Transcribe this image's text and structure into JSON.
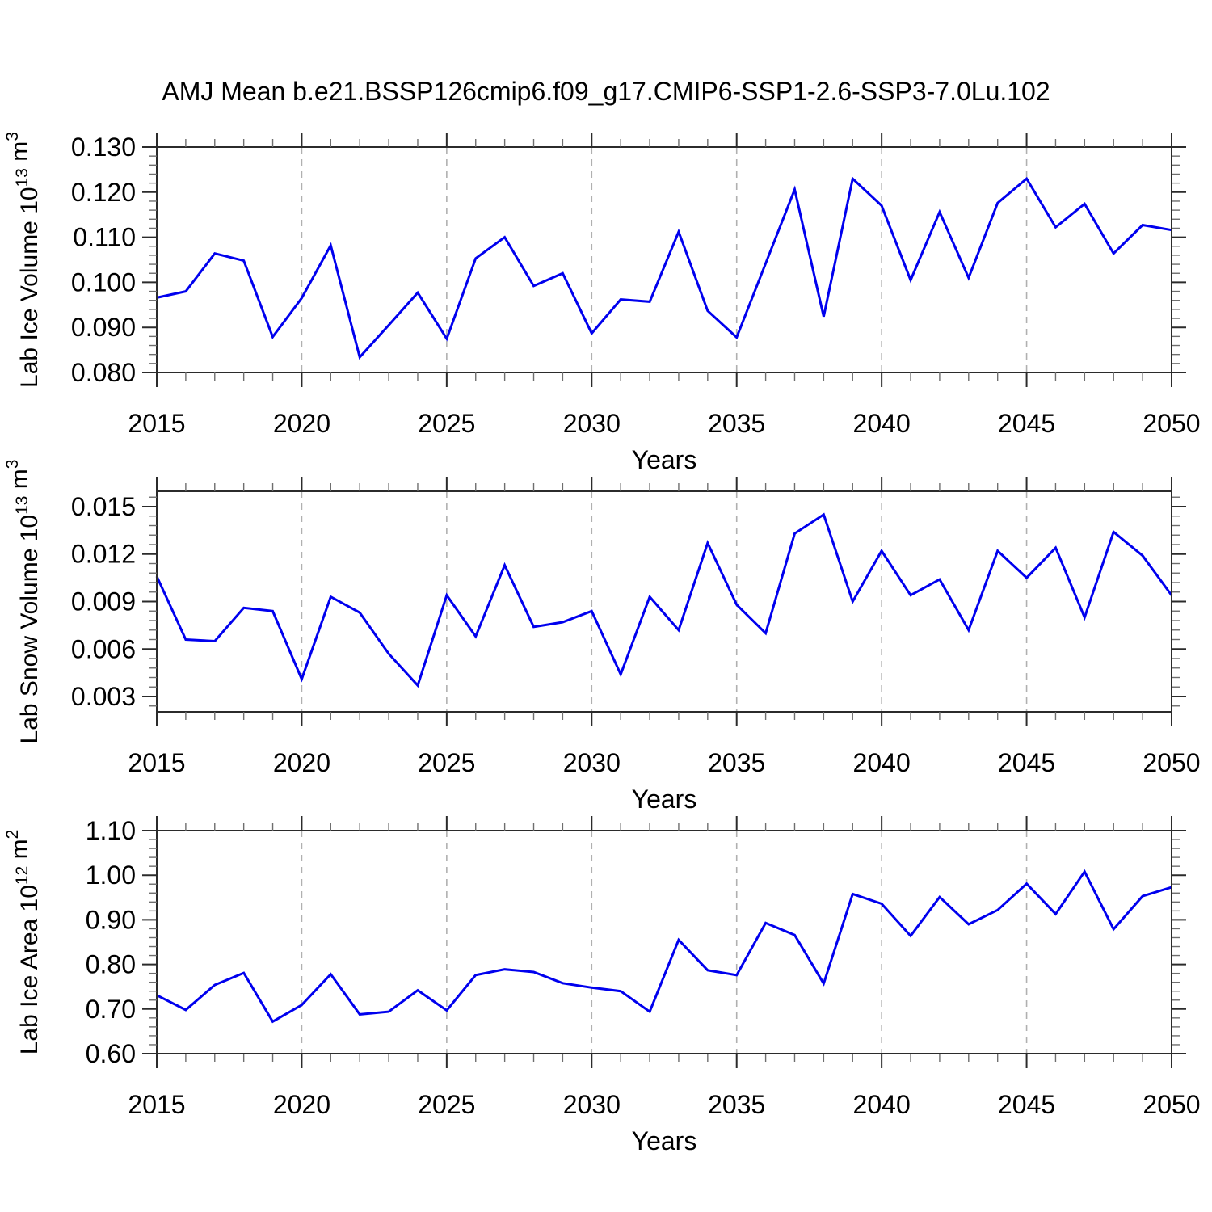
{
  "title": "AMJ Mean b.e21.BSSP126cmip6.f09_g17.CMIP6-SSP1-2.6-SSP3-7.0Lu.102",
  "xlabel": "Years",
  "colors": {
    "line": "#0000EE",
    "grid": "#B0B0B0",
    "axis": "#2B2B2B",
    "minor_tick": "#6E6E6E",
    "text": "#000000",
    "background": "#FFFFFF"
  },
  "x_axis": {
    "start": 2015,
    "end": 2050,
    "major_step": 5,
    "minor_step": 1,
    "grid_years": [
      2020,
      2025,
      2030,
      2035,
      2040,
      2045
    ],
    "tick_labels": [
      "2015",
      "2020",
      "2025",
      "2030",
      "2035",
      "2040",
      "2045",
      "2050"
    ]
  },
  "chart_data": [
    {
      "type": "line",
      "panel_id": "lab-ice-volume",
      "ylabel": "Lab Ice Volume 10^13 m^3",
      "ylabel_parts": [
        {
          "t": "Lab Ice Volume 10"
        },
        {
          "t": "13",
          "sup": true
        },
        {
          "t": " m"
        },
        {
          "t": "3",
          "sup": true
        }
      ],
      "xlabel": "Years",
      "x": [
        2015,
        2016,
        2017,
        2018,
        2019,
        2020,
        2021,
        2022,
        2023,
        2024,
        2025,
        2026,
        2027,
        2028,
        2029,
        2030,
        2031,
        2032,
        2033,
        2034,
        2035,
        2036,
        2037,
        2038,
        2039,
        2040,
        2041,
        2042,
        2043,
        2044,
        2045,
        2046,
        2047,
        2048,
        2049,
        2050
      ],
      "values": [
        0.0966,
        0.098,
        0.1064,
        0.1048,
        0.0879,
        0.0965,
        0.1082,
        0.0834,
        0.0905,
        0.0977,
        0.0875,
        0.1053,
        0.11,
        0.0992,
        0.102,
        0.0887,
        0.0962,
        0.0957,
        0.1112,
        0.0937,
        0.0878,
        0.1042,
        0.1206,
        0.0924,
        0.123,
        0.117,
        0.1005,
        0.1156,
        0.101,
        0.1176,
        0.123,
        0.1122,
        0.1174,
        0.1064,
        0.1127,
        0.1116
      ],
      "ylim": [
        0.08,
        0.13
      ],
      "yticks": [
        0.08,
        0.09,
        0.1,
        0.11,
        0.12,
        0.13
      ],
      "ytick_labels": [
        "0.080",
        "0.090",
        "0.100",
        "0.110",
        "0.120",
        "0.130"
      ],
      "ytick_minor_step": 0.002,
      "grid": "vertical-dashed"
    },
    {
      "type": "line",
      "panel_id": "lab-snow-volume",
      "ylabel": "Lab Snow Volume 10^13 m^3",
      "ylabel_parts": [
        {
          "t": "Lab Snow Volume 10"
        },
        {
          "t": "13",
          "sup": true
        },
        {
          "t": " m"
        },
        {
          "t": "3",
          "sup": true
        }
      ],
      "xlabel": "Years",
      "x": [
        2015,
        2016,
        2017,
        2018,
        2019,
        2020,
        2021,
        2022,
        2023,
        2024,
        2025,
        2026,
        2027,
        2028,
        2029,
        2030,
        2031,
        2032,
        2033,
        2034,
        2035,
        2036,
        2037,
        2038,
        2039,
        2040,
        2041,
        2042,
        2043,
        2044,
        2045,
        2046,
        2047,
        2048,
        2049,
        2050
      ],
      "values": [
        0.0106,
        0.0066,
        0.0065,
        0.0086,
        0.0084,
        0.0041,
        0.0093,
        0.0083,
        0.0057,
        0.0037,
        0.0094,
        0.0068,
        0.0113,
        0.0074,
        0.0077,
        0.0084,
        0.0044,
        0.0093,
        0.0072,
        0.0127,
        0.0088,
        0.007,
        0.0133,
        0.0145,
        0.009,
        0.0122,
        0.0094,
        0.0104,
        0.0072,
        0.0122,
        0.0105,
        0.0124,
        0.008,
        0.0134,
        0.0119,
        0.0094
      ],
      "ylim": [
        0.00203,
        0.01597
      ],
      "yticks": [
        0.003,
        0.006,
        0.009,
        0.012,
        0.015
      ],
      "ytick_labels": [
        "0.003",
        "0.006",
        "0.009",
        "0.012",
        "0.015"
      ],
      "ytick_minor_step": 0.0006,
      "grid": "vertical-dashed"
    },
    {
      "type": "line",
      "panel_id": "lab-ice-area",
      "ylabel": "Lab Ice Area 10^12 m^2",
      "ylabel_parts": [
        {
          "t": "Lab Ice Area 10"
        },
        {
          "t": "12",
          "sup": true
        },
        {
          "t": " m"
        },
        {
          "t": "2",
          "sup": true
        }
      ],
      "xlabel": "Years",
      "x": [
        2015,
        2016,
        2017,
        2018,
        2019,
        2020,
        2021,
        2022,
        2023,
        2024,
        2025,
        2026,
        2027,
        2028,
        2029,
        2030,
        2031,
        2032,
        2033,
        2034,
        2035,
        2036,
        2037,
        2038,
        2039,
        2040,
        2041,
        2042,
        2043,
        2044,
        2045,
        2046,
        2047,
        2048,
        2049,
        2050
      ],
      "values": [
        0.731,
        0.698,
        0.754,
        0.781,
        0.672,
        0.709,
        0.778,
        0.688,
        0.694,
        0.742,
        0.697,
        0.776,
        0.789,
        0.783,
        0.758,
        0.748,
        0.74,
        0.694,
        0.855,
        0.787,
        0.776,
        0.893,
        0.866,
        0.757,
        0.958,
        0.936,
        0.864,
        0.951,
        0.89,
        0.922,
        0.981,
        0.913,
        1.008,
        0.879,
        0.953,
        0.973
      ],
      "ylim": [
        0.6,
        1.1
      ],
      "yticks": [
        0.6,
        0.7,
        0.8,
        0.9,
        1.0,
        1.1
      ],
      "ytick_labels": [
        "0.60",
        "0.70",
        "0.80",
        "0.90",
        "1.00",
        "1.10"
      ],
      "ytick_minor_step": 0.02,
      "grid": "vertical-dashed"
    }
  ]
}
